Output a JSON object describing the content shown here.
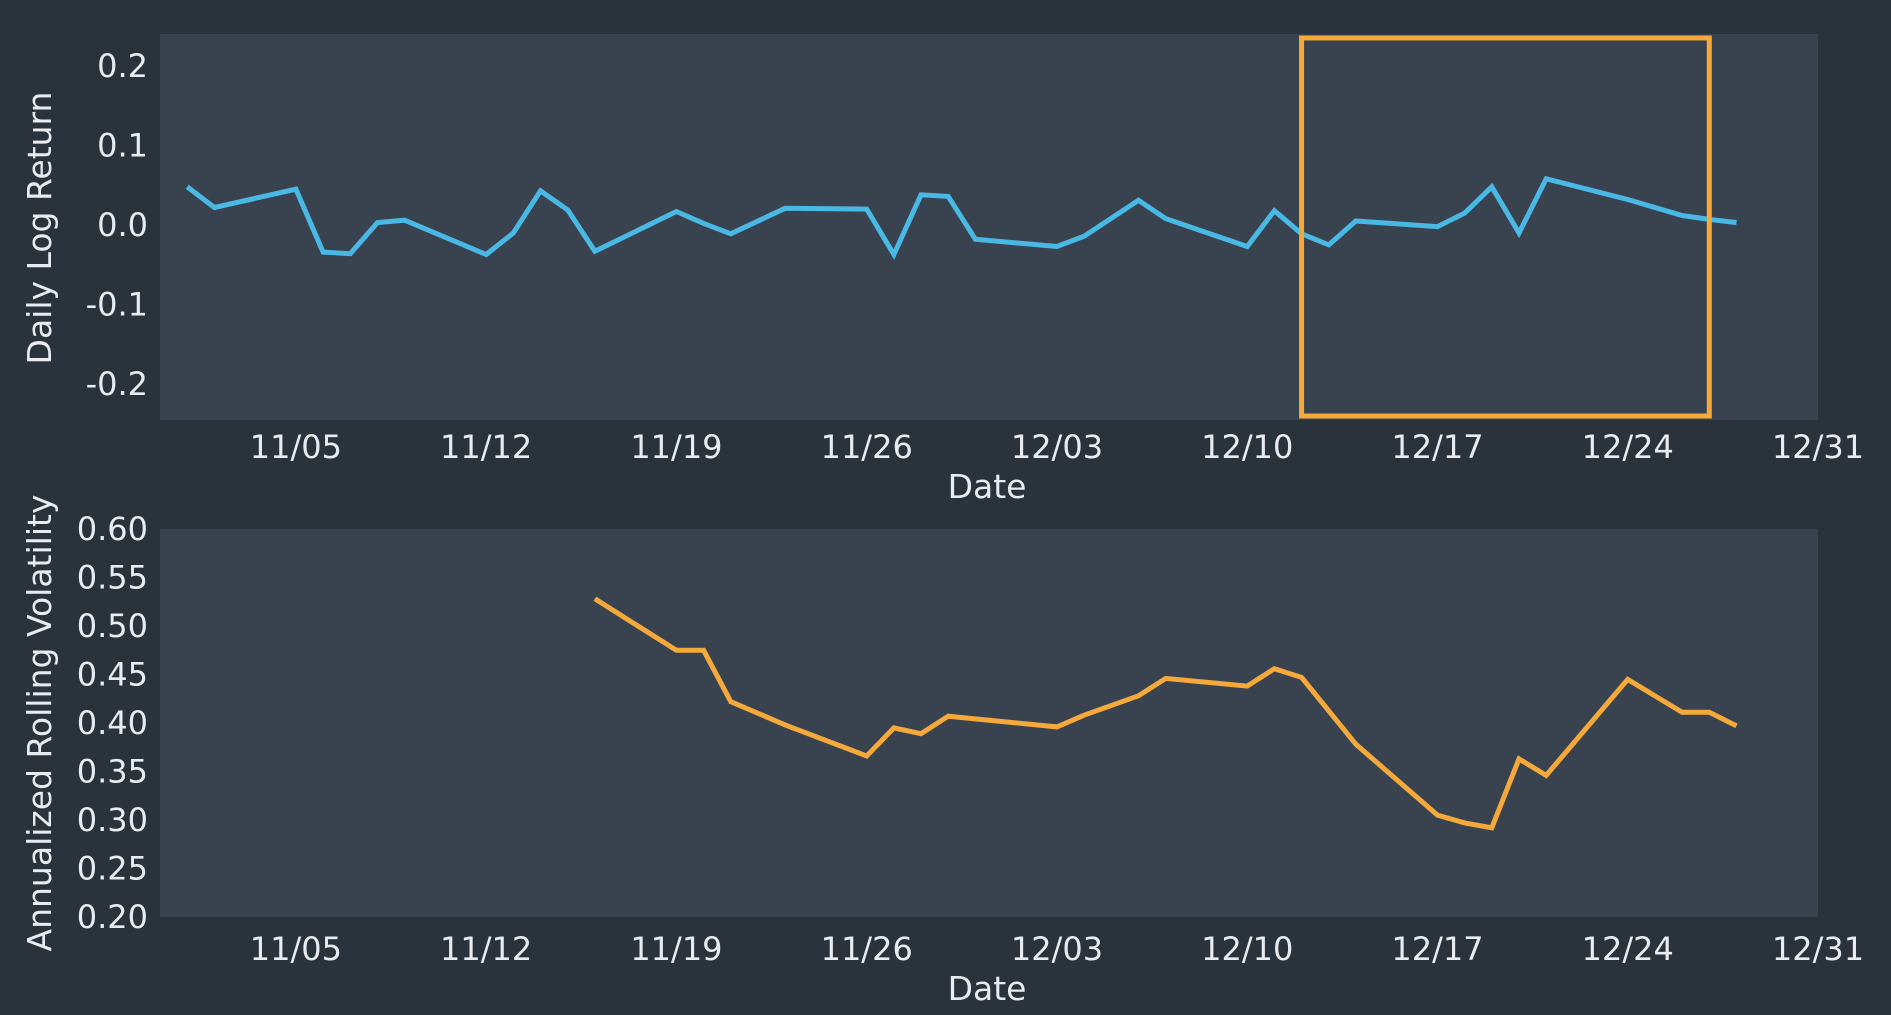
{
  "chart_data": [
    {
      "type": "line",
      "xlabel": "Date",
      "ylabel": "Daily Log Return",
      "ylim": [
        -0.245,
        0.24
      ],
      "yticks": [
        0.2,
        0.1,
        0.0,
        -0.1,
        -0.2
      ],
      "ytick_labels": [
        "0.2",
        "0.1",
        "0.0",
        "-0.1",
        "-0.2"
      ],
      "xlim": [
        "2018-10-31",
        "2018-12-31"
      ],
      "xticks": [
        "2018-11-05",
        "2018-11-12",
        "2018-11-19",
        "2018-11-26",
        "2018-12-03",
        "2018-12-10",
        "2018-12-17",
        "2018-12-24",
        "2018-12-31"
      ],
      "xtick_labels": [
        "11/05",
        "11/12",
        "11/19",
        "11/26",
        "12/03",
        "12/10",
        "12/17",
        "12/24",
        "12/31"
      ],
      "grid": false,
      "series": [
        {
          "color": "#4ab8e4",
          "x": [
            "2018-11-01",
            "2018-11-02",
            "2018-11-05",
            "2018-11-06",
            "2018-11-07",
            "2018-11-08",
            "2018-11-09",
            "2018-11-12",
            "2018-11-13",
            "2018-11-14",
            "2018-11-15",
            "2018-11-16",
            "2018-11-19",
            "2018-11-20",
            "2018-11-21",
            "2018-11-23",
            "2018-11-26",
            "2018-11-27",
            "2018-11-28",
            "2018-11-29",
            "2018-11-30",
            "2018-12-03",
            "2018-12-04",
            "2018-12-06",
            "2018-12-07",
            "2018-12-10",
            "2018-12-11",
            "2018-12-12",
            "2018-12-13",
            "2018-12-14",
            "2018-12-17",
            "2018-12-18",
            "2018-12-19",
            "2018-12-20",
            "2018-12-21",
            "2018-12-24",
            "2018-12-26",
            "2018-12-27",
            "2018-12-28"
          ],
          "y": [
            0.048,
            0.022,
            0.045,
            -0.034,
            -0.036,
            0.003,
            0.006,
            -0.037,
            -0.01,
            0.043,
            0.019,
            -0.033,
            0.017,
            0.002,
            -0.011,
            0.021,
            0.02,
            -0.037,
            0.038,
            0.036,
            -0.018,
            -0.027,
            -0.014,
            0.031,
            0.008,
            -0.027,
            0.018,
            -0.011,
            -0.025,
            0.005,
            -0.002,
            0.015,
            0.048,
            -0.01,
            0.058,
            0.032,
            0.012,
            0.007,
            0.003
          ]
        }
      ],
      "highlight_box": {
        "x": [
          "2018-12-12",
          "2018-12-27"
        ],
        "y": [
          -0.24,
          0.235
        ],
        "color": "#f4a93a"
      }
    },
    {
      "type": "line",
      "xlabel": "Date",
      "ylabel": "Annualized Rolling Volatility",
      "ylim": [
        0.2,
        0.6
      ],
      "yticks": [
        0.6,
        0.55,
        0.5,
        0.45,
        0.4,
        0.35,
        0.3,
        0.25,
        0.2
      ],
      "ytick_labels": [
        "0.60",
        "0.55",
        "0.50",
        "0.45",
        "0.40",
        "0.35",
        "0.30",
        "0.25",
        "0.20"
      ],
      "xlim": [
        "2018-10-31",
        "2018-12-31"
      ],
      "xticks": [
        "2018-11-05",
        "2018-11-12",
        "2018-11-19",
        "2018-11-26",
        "2018-12-03",
        "2018-12-10",
        "2018-12-17",
        "2018-12-24",
        "2018-12-31"
      ],
      "xtick_labels": [
        "11/05",
        "11/12",
        "11/19",
        "11/26",
        "12/03",
        "12/10",
        "12/17",
        "12/24",
        "12/31"
      ],
      "grid": false,
      "series": [
        {
          "color": "#f4a93a",
          "x": [
            "2018-11-16",
            "2018-11-19",
            "2018-11-20",
            "2018-11-21",
            "2018-11-23",
            "2018-11-26",
            "2018-11-27",
            "2018-11-28",
            "2018-11-29",
            "2018-12-03",
            "2018-12-04",
            "2018-12-06",
            "2018-12-07",
            "2018-12-10",
            "2018-12-11",
            "2018-12-12",
            "2018-12-14",
            "2018-12-17",
            "2018-12-18",
            "2018-12-19",
            "2018-12-20",
            "2018-12-21",
            "2018-12-24",
            "2018-12-26",
            "2018-12-27",
            "2018-12-28"
          ],
          "y": [
            0.528,
            0.475,
            0.475,
            0.422,
            0.398,
            0.366,
            0.395,
            0.389,
            0.407,
            0.396,
            0.408,
            0.428,
            0.446,
            0.438,
            0.456,
            0.447,
            0.378,
            0.305,
            0.297,
            0.292,
            0.363,
            0.346,
            0.445,
            0.411,
            0.411,
            0.397
          ]
        }
      ]
    }
  ]
}
